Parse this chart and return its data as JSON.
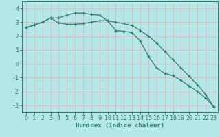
{
  "title": "",
  "xlabel": "Humidex (Indice chaleur)",
  "ylabel": "",
  "background_color": "#b3e8e8",
  "grid_color": "#e8b8b8",
  "line_color": "#2e7d6e",
  "x_values": [
    0,
    1,
    2,
    3,
    4,
    5,
    6,
    7,
    8,
    9,
    10,
    11,
    12,
    13,
    14,
    15,
    16,
    17,
    18,
    19,
    20,
    21,
    22,
    23
  ],
  "line1": [
    2.6,
    2.8,
    3.0,
    3.3,
    3.3,
    3.5,
    3.65,
    3.65,
    3.55,
    3.5,
    3.1,
    2.4,
    2.35,
    2.25,
    1.65,
    0.55,
    -0.3,
    -0.7,
    -0.85,
    -1.2,
    -1.6,
    -2.0,
    -2.45,
    -3.1
  ],
  "line2": [
    2.6,
    2.8,
    3.0,
    3.3,
    2.95,
    2.85,
    2.85,
    2.9,
    3.0,
    3.1,
    3.1,
    3.0,
    2.9,
    2.75,
    2.4,
    2.0,
    1.5,
    0.9,
    0.3,
    -0.3,
    -0.9,
    -1.5,
    -2.2,
    -3.1
  ],
  "ylim": [
    -3.5,
    4.5
  ],
  "xlim": [
    -0.5,
    23.5
  ],
  "yticks": [
    -3,
    -2,
    -1,
    0,
    1,
    2,
    3,
    4
  ],
  "xticks": [
    0,
    1,
    2,
    3,
    4,
    5,
    6,
    7,
    8,
    9,
    10,
    11,
    12,
    13,
    14,
    15,
    16,
    17,
    18,
    19,
    20,
    21,
    22,
    23
  ],
  "xlabel_fontsize": 6.5,
  "tick_fontsize": 6.0
}
